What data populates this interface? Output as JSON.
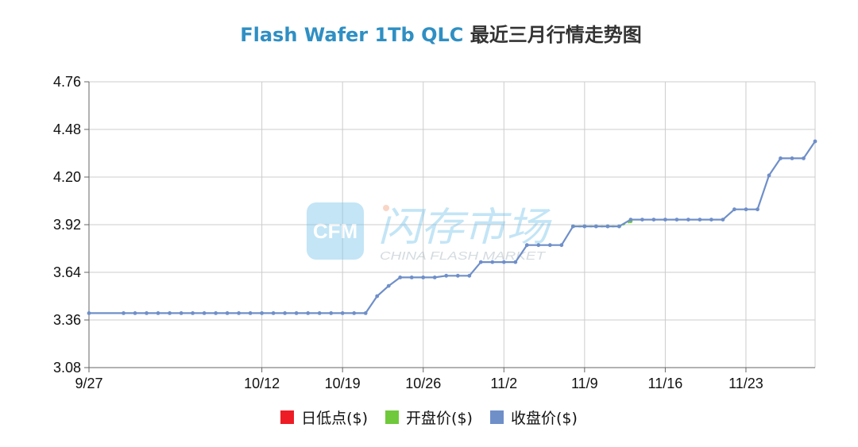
{
  "title": {
    "en": "Flash Wafer 1Tb QLC",
    "zh": "最近三月行情走势图"
  },
  "watermark": {
    "badge": "CFM",
    "cn": "闪存市场",
    "en": "CHINA FLASH MARKET"
  },
  "legend": [
    {
      "label": "日低点($)",
      "color": "#ee1c25"
    },
    {
      "label": "开盘价($)",
      "color": "#6fc93b"
    },
    {
      "label": "收盘价($)",
      "color": "#6f8fc9"
    }
  ],
  "chart_data": {
    "type": "line",
    "x_axis": {
      "type": "date",
      "min": "2024-09-27",
      "max": "2024-11-29"
    },
    "xticks": [
      {
        "date": "2024-09-27",
        "label": "9/27"
      },
      {
        "date": "2024-10-12",
        "label": "10/12"
      },
      {
        "date": "2024-10-19",
        "label": "10/19"
      },
      {
        "date": "2024-10-26",
        "label": "10/26"
      },
      {
        "date": "2024-11-02",
        "label": "11/2"
      },
      {
        "date": "2024-11-09",
        "label": "11/9"
      },
      {
        "date": "2024-11-16",
        "label": "11/16"
      },
      {
        "date": "2024-11-23",
        "label": "11/23"
      }
    ],
    "ylim": [
      3.08,
      4.76
    ],
    "yticks": [
      "3.08",
      "3.36",
      "3.64",
      "3.92",
      "4.20",
      "4.48",
      "4.76"
    ],
    "grid": true,
    "legend_position": "bottom",
    "series": [
      {
        "name": "开盘价($)",
        "color": "#6fc93b",
        "line_style": "dotted",
        "points": [
          [
            "2024-11-08",
            3.91
          ],
          [
            "2024-11-09",
            3.91
          ],
          [
            "2024-11-10",
            3.91
          ],
          [
            "2024-11-11",
            3.91
          ],
          [
            "2024-11-12",
            3.91
          ],
          [
            "2024-11-13",
            3.94
          ]
        ]
      },
      {
        "name": "收盘价($)",
        "color": "#6f8fc9",
        "line_style": "solid",
        "points": [
          [
            "2024-09-27",
            3.4
          ],
          [
            "2024-09-30",
            3.4
          ],
          [
            "2024-10-01",
            3.4
          ],
          [
            "2024-10-02",
            3.4
          ],
          [
            "2024-10-03",
            3.4
          ],
          [
            "2024-10-04",
            3.4
          ],
          [
            "2024-10-05",
            3.4
          ],
          [
            "2024-10-06",
            3.4
          ],
          [
            "2024-10-07",
            3.4
          ],
          [
            "2024-10-08",
            3.4
          ],
          [
            "2024-10-09",
            3.4
          ],
          [
            "2024-10-10",
            3.4
          ],
          [
            "2024-10-11",
            3.4
          ],
          [
            "2024-10-12",
            3.4
          ],
          [
            "2024-10-13",
            3.4
          ],
          [
            "2024-10-14",
            3.4
          ],
          [
            "2024-10-15",
            3.4
          ],
          [
            "2024-10-16",
            3.4
          ],
          [
            "2024-10-17",
            3.4
          ],
          [
            "2024-10-18",
            3.4
          ],
          [
            "2024-10-19",
            3.4
          ],
          [
            "2024-10-20",
            3.4
          ],
          [
            "2024-10-21",
            3.4
          ],
          [
            "2024-10-22",
            3.5
          ],
          [
            "2024-10-23",
            3.56
          ],
          [
            "2024-10-24",
            3.61
          ],
          [
            "2024-10-25",
            3.61
          ],
          [
            "2024-10-26",
            3.61
          ],
          [
            "2024-10-27",
            3.61
          ],
          [
            "2024-10-28",
            3.62
          ],
          [
            "2024-10-29",
            3.62
          ],
          [
            "2024-10-30",
            3.62
          ],
          [
            "2024-10-31",
            3.7
          ],
          [
            "2024-11-01",
            3.7
          ],
          [
            "2024-11-02",
            3.7
          ],
          [
            "2024-11-03",
            3.7
          ],
          [
            "2024-11-04",
            3.8
          ],
          [
            "2024-11-05",
            3.8
          ],
          [
            "2024-11-06",
            3.8
          ],
          [
            "2024-11-07",
            3.8
          ],
          [
            "2024-11-08",
            3.91
          ],
          [
            "2024-11-09",
            3.91
          ],
          [
            "2024-11-10",
            3.91
          ],
          [
            "2024-11-11",
            3.91
          ],
          [
            "2024-11-12",
            3.91
          ],
          [
            "2024-11-13",
            3.95
          ],
          [
            "2024-11-14",
            3.95
          ],
          [
            "2024-11-15",
            3.95
          ],
          [
            "2024-11-16",
            3.95
          ],
          [
            "2024-11-17",
            3.95
          ],
          [
            "2024-11-18",
            3.95
          ],
          [
            "2024-11-19",
            3.95
          ],
          [
            "2024-11-20",
            3.95
          ],
          [
            "2024-11-21",
            3.95
          ],
          [
            "2024-11-22",
            4.01
          ],
          [
            "2024-11-23",
            4.01
          ],
          [
            "2024-11-24",
            4.01
          ],
          [
            "2024-11-25",
            4.21
          ],
          [
            "2024-11-26",
            4.31
          ],
          [
            "2024-11-27",
            4.31
          ],
          [
            "2024-11-28",
            4.31
          ],
          [
            "2024-11-29",
            4.41
          ]
        ]
      }
    ]
  }
}
